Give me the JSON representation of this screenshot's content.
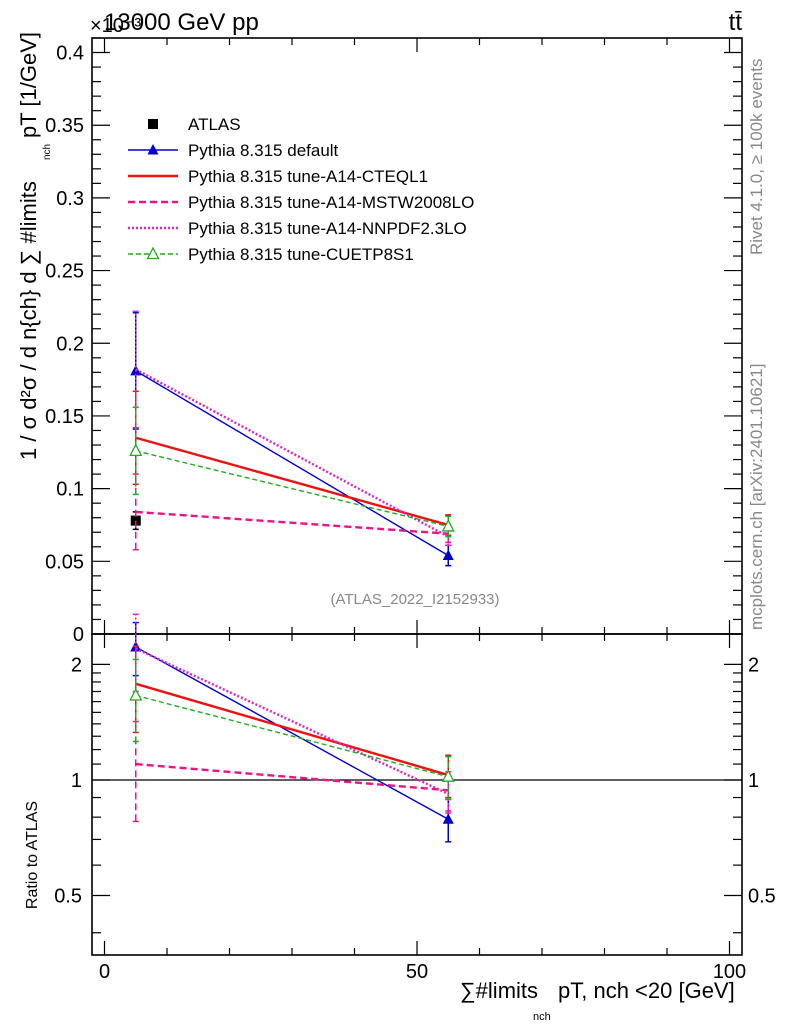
{
  "header": {
    "energy_label": "13000 GeV pp",
    "process_label": "tt̄",
    "multiplier_label": "×10⁻³"
  },
  "side_text": {
    "rivet": "Rivet 4.1.0, ≥ 100k events",
    "mcplots": "mcplots.cern.ch [arXiv:2401.10621]"
  },
  "watermark": "(ATLAS_2022_I2152933)",
  "colors": {
    "atlas": "#000000",
    "default": "#0000cc",
    "cteql1": "#ee1111",
    "mstw": "#ee1188",
    "nnpdf": "#dd22cc",
    "cuetp": "#22aa22"
  },
  "chart_data": [
    {
      "type": "line",
      "title": "",
      "ylabel": "1 / σ d²σ / d n_{ch} d ∑#limits_{n_ch} p_T [1/GeV]",
      "ylabel_text": "1 / σ d²σ / d n{ch} d ∑ #limits",
      "ylabel_sub": "nch",
      "ylabel_tail": "pT [1/GeV]",
      "xlim": [
        -2,
        102
      ],
      "ylim": [
        0,
        0.41
      ],
      "y_scale_note": "values ×10⁻³",
      "y_ticks": [
        0,
        0.05,
        0.1,
        0.15,
        0.2,
        0.25,
        0.3,
        0.35,
        0.4
      ],
      "y_tick_labels": [
        "0",
        "0.05",
        "0.1",
        "0.15",
        "0.2",
        "0.25",
        "0.3",
        "0.35",
        "0.4"
      ],
      "x_ticks": [
        0,
        50,
        100
      ],
      "legend_position": "top-left",
      "series": [
        {
          "name": "ATLAS",
          "key": "atlas",
          "x": [
            5
          ],
          "y": [
            0.078
          ],
          "err": [
            0.006
          ],
          "marker": "square"
        },
        {
          "name": "Pythia 8.315 default",
          "key": "default",
          "x": [
            5,
            55
          ],
          "y": [
            0.181,
            0.054
          ],
          "err": [
            0.04,
            0.007
          ],
          "marker": "triangle"
        },
        {
          "name": "Pythia 8.315 tune-A14-CTEQL1",
          "key": "cteql1",
          "x": [
            5,
            55
          ],
          "y": [
            0.135,
            0.075
          ],
          "err": [
            0.032,
            0.007
          ],
          "marker": "none"
        },
        {
          "name": "Pythia 8.315 tune-A14-MSTW2008LO",
          "key": "mstw",
          "x": [
            5,
            55
          ],
          "y": [
            0.084,
            0.069
          ],
          "err": [
            0.026,
            0.006
          ],
          "marker": "none"
        },
        {
          "name": "Pythia 8.315 tune-A14-NNPDF2.3LO",
          "key": "nnpdf",
          "x": [
            5,
            55
          ],
          "y": [
            0.182,
            0.067
          ],
          "err": [
            0.04,
            0.006
          ],
          "marker": "none"
        },
        {
          "name": "Pythia 8.315 tune-CUETP8S1",
          "key": "cuetp",
          "x": [
            5,
            55
          ],
          "y": [
            0.126,
            0.074
          ],
          "err": [
            0.03,
            0.007
          ],
          "marker": "open-triangle"
        }
      ]
    },
    {
      "type": "line",
      "title": "",
      "ylabel": "Ratio to ATLAS",
      "xlabel": "∑#limits_{n_ch} p_T, n_ch <20 [GeV]",
      "xlabel_text": "∑#limits",
      "xlabel_sub": "nch",
      "xlabel_tail": "pT, nch <20 [GeV]",
      "xlim": [
        -2,
        102
      ],
      "ylim_log": [
        0.35,
        2.4
      ],
      "y_ticks": [
        0.5,
        1,
        2
      ],
      "y_tick_labels": [
        "0.5",
        "1",
        "2"
      ],
      "x_ticks": [
        0,
        50,
        100
      ],
      "x_tick_labels": [
        "0",
        "50",
        "100"
      ],
      "series": [
        {
          "name": "Pythia 8.315 default",
          "key": "default",
          "x": [
            5,
            55
          ],
          "y": [
            2.22,
            0.79
          ],
          "err": [
            0.35,
            0.1
          ]
        },
        {
          "name": "Pythia 8.315 tune-A14-CTEQL1",
          "key": "cteql1",
          "x": [
            5,
            55
          ],
          "y": [
            1.78,
            1.03
          ],
          "err": [
            0.45,
            0.13
          ]
        },
        {
          "name": "Pythia 8.315 tune-A14-MSTW2008LO",
          "key": "mstw",
          "x": [
            5,
            55
          ],
          "y": [
            1.1,
            0.94
          ],
          "err": [
            0.32,
            0.11
          ]
        },
        {
          "name": "Pythia 8.315 tune-A14-NNPDF2.3LO",
          "key": "nnpdf",
          "x": [
            5,
            55
          ],
          "y": [
            2.2,
            0.92
          ],
          "err": [
            0.5,
            0.1
          ]
        },
        {
          "name": "Pythia 8.315 tune-CUETP8S1",
          "key": "cuetp",
          "x": [
            5,
            55
          ],
          "y": [
            1.66,
            1.02
          ],
          "err": [
            0.4,
            0.13
          ]
        }
      ]
    }
  ]
}
